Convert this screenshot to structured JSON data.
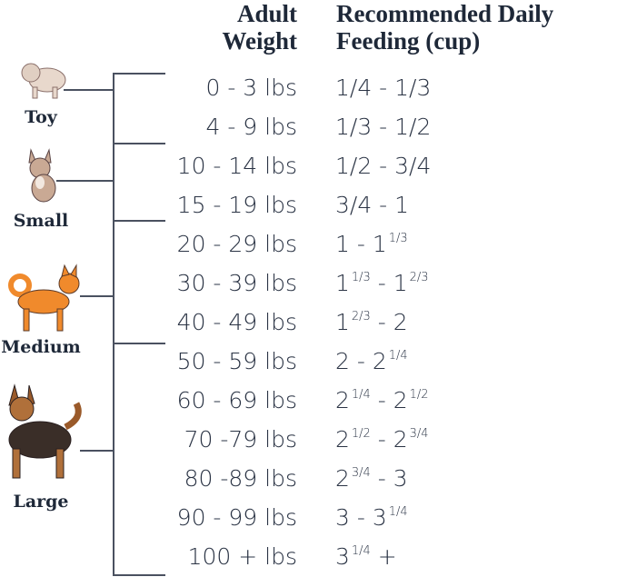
{
  "headers": {
    "weight": [
      "Adult",
      "Weight"
    ],
    "feeding": [
      "Recommended Daily",
      "Feeding (cup)"
    ]
  },
  "categories": [
    {
      "label": "Toy",
      "icon": "toy-dog-icon"
    },
    {
      "label": "Small",
      "icon": "french-bulldog-icon"
    },
    {
      "label": "Medium",
      "icon": "shiba-inu-icon"
    },
    {
      "label": "Large",
      "icon": "german-shepherd-icon"
    }
  ],
  "rows": [
    {
      "weight": "0 - 3 lbs",
      "feeding": [
        {
          "t": "1/4 - 1/3"
        }
      ]
    },
    {
      "weight": "4 - 9 lbs",
      "feeding": [
        {
          "t": "1/3 - 1/2"
        }
      ]
    },
    {
      "weight": "10 - 14 lbs",
      "feeding": [
        {
          "t": "1/2 - 3/4"
        }
      ]
    },
    {
      "weight": "15 - 19 lbs",
      "feeding": [
        {
          "t": "3/4 - 1"
        }
      ]
    },
    {
      "weight": "20 - 29 lbs",
      "feeding": [
        {
          "t": "1 - 1",
          "sup": "1/3"
        }
      ]
    },
    {
      "weight": "30 - 39 lbs",
      "feeding": [
        {
          "t": "1",
          "sup": "1/3"
        },
        {
          "t": " - 1",
          "sup": "2/3"
        }
      ]
    },
    {
      "weight": "40 - 49 lbs",
      "feeding": [
        {
          "t": "1",
          "sup": "2/3"
        },
        {
          "t": " - 2"
        }
      ]
    },
    {
      "weight": "50 - 59 lbs",
      "feeding": [
        {
          "t": "2 - 2",
          "sup": "1/4"
        }
      ]
    },
    {
      "weight": "60 - 69 lbs",
      "feeding": [
        {
          "t": "2",
          "sup": "1/4"
        },
        {
          "t": " - 2",
          "sup": "1/2"
        }
      ]
    },
    {
      "weight": "70 -79 lbs",
      "feeding": [
        {
          "t": "2",
          "sup": "1/2"
        },
        {
          "t": " - 2",
          "sup": "3/4"
        }
      ]
    },
    {
      "weight": "80 -89 lbs",
      "feeding": [
        {
          "t": "2",
          "sup": "3/4"
        },
        {
          "t": " - 3"
        }
      ]
    },
    {
      "weight": "90 - 99 lbs",
      "feeding": [
        {
          "t": "3 - 3",
          "sup": "1/4"
        }
      ]
    },
    {
      "weight": "100 + lbs",
      "feeding": [
        {
          "t": "3",
          "sup": "1/4"
        },
        {
          "t": " +"
        }
      ]
    }
  ],
  "colors": {
    "text": "#1e2838",
    "line": "#4a5160",
    "shiba": "#f08a2c",
    "shepherd": "#9a5a2a"
  }
}
